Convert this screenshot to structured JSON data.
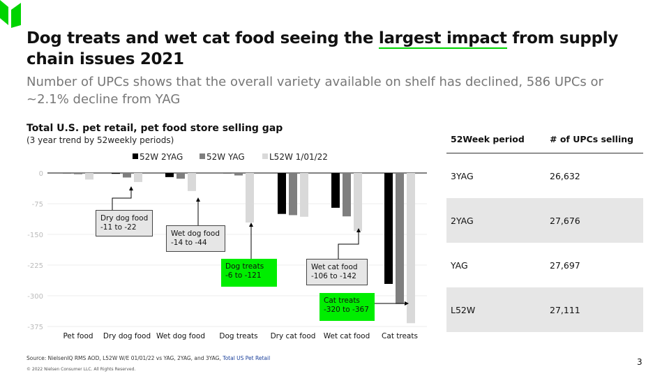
{
  "header": {
    "title_pre": "Dog treats and wet cat food seeing the ",
    "title_hl": "largest impact",
    "title_post": " from supply chain issues 2021",
    "subtitle": "Number of UPCs shows that the overall variety available on shelf has declined, 586 UPCs or ~2.1% decline from YAG"
  },
  "chart_data": {
    "type": "bar",
    "title": "Total U.S. pet retail, pet food store selling gap",
    "subtitle": "(3 year trend by 52weekly periods)",
    "categories": [
      "Pet food",
      "Dry dog food",
      "Wet dog food",
      "Dog treats",
      "Dry cat food",
      "Wet cat food",
      "Cat treats"
    ],
    "series": [
      {
        "name": "52W 2YAG",
        "color": "#000000",
        "values": [
          -1,
          -2,
          -10,
          -1,
          -100,
          -85,
          -271
        ]
      },
      {
        "name": "52W YAG",
        "color": "#7f7f7f",
        "values": [
          -3,
          -11,
          -14,
          -6,
          -103,
          -106,
          -320
        ]
      },
      {
        "name": "L52W 1/01/22",
        "color": "#d9d9d9",
        "values": [
          -16,
          -22,
          -44,
          -121,
          -107,
          -142,
          -367
        ]
      }
    ],
    "yticks": [
      0,
      -75,
      -150,
      -225,
      -300,
      -375
    ],
    "ylim": [
      -375,
      0
    ],
    "grid": true,
    "legend": "top",
    "annotations": [
      {
        "title": "Dry dog food",
        "range": "-11 to -22"
      },
      {
        "title": "Wet dog food",
        "range": "-14 to -44"
      },
      {
        "title": "Dog treats",
        "range": "-6 to -121"
      },
      {
        "title": "Wet cat food",
        "range": "-106 to -142"
      },
      {
        "title": "Cat treats",
        "range": "-320 to -367"
      }
    ]
  },
  "table": {
    "headers": [
      "52Week period",
      "# of UPCs selling"
    ],
    "rows": [
      [
        "3YAG",
        "26,632"
      ],
      [
        "2YAG",
        "27,676"
      ],
      [
        "YAG",
        "27,697"
      ],
      [
        "L52W",
        "27,111"
      ]
    ]
  },
  "footer": {
    "source": "Source: NielsenIQ RMS AOD, L52W W/E 01/01/22 vs YAG, 2YAG, and 3YAG, ",
    "source_link": "Total US Pet Retail",
    "copyright": "© 2022 Nielsen Consumer LLC. All Rights Reserved.",
    "page": "3"
  },
  "colors": {
    "accent": "#00d400"
  }
}
